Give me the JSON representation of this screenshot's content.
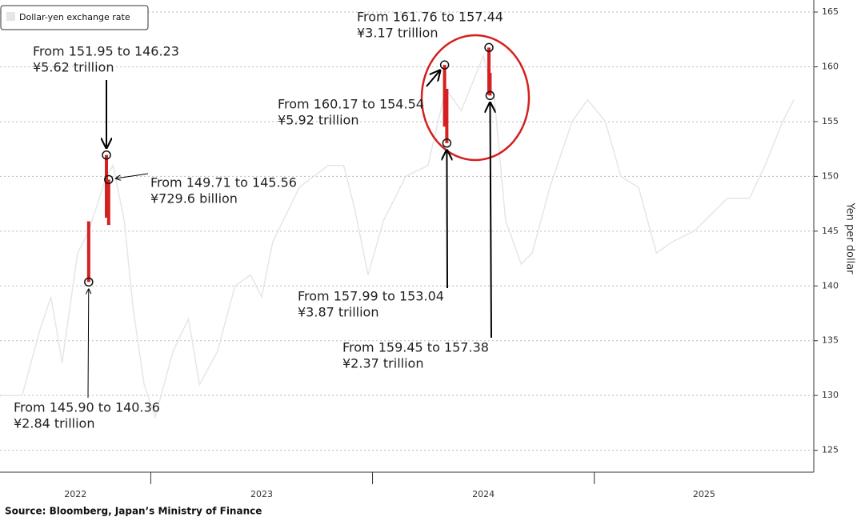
{
  "chart_data": {
    "type": "line",
    "legend": "upper left",
    "y_label": "Yen per dollar",
    "ylim": [
      123,
      166.1
    ],
    "yticks": [
      125,
      130,
      135,
      140,
      145,
      150,
      155,
      160,
      165
    ],
    "grid": true,
    "xlim": [
      2022.32,
      2025.99
    ],
    "xticks": [
      2023,
      2024,
      2025
    ],
    "period_labels": [
      "2022",
      "2023",
      "2024",
      "2025"
    ],
    "series": [
      {
        "name": "Dollar-yen exchange rate",
        "color": "#e6e6e6",
        "x": [
          2022.33,
          2022.42,
          2022.5,
          2022.55,
          2022.6,
          2022.67,
          2022.72,
          2022.8,
          2022.83,
          2022.88,
          2022.92,
          2022.97,
          2023.02,
          2023.1,
          2023.17,
          2023.22,
          2023.3,
          2023.38,
          2023.45,
          2023.5,
          2023.55,
          2023.67,
          2023.8,
          2023.87,
          2023.92,
          2023.98,
          2024.05,
          2024.15,
          2024.25,
          2024.33,
          2024.4,
          2024.5,
          2024.55,
          2024.6,
          2024.67,
          2024.72,
          2024.8,
          2024.9,
          2024.97,
          2025.05,
          2025.12,
          2025.2,
          2025.28,
          2025.35,
          2025.45,
          2025.55,
          2025.6,
          2025.7,
          2025.77,
          2025.85,
          2025.9
        ],
        "values": [
          130,
          130,
          136,
          139,
          133,
          143,
          145,
          150,
          151,
          146,
          138,
          131,
          128,
          134,
          137,
          131,
          134,
          140,
          141,
          139,
          144,
          149,
          151,
          151,
          147,
          141,
          146,
          150,
          151,
          158,
          156,
          161,
          157,
          146,
          142,
          143,
          149,
          155,
          157,
          155,
          150,
          149,
          143,
          144,
          145,
          147,
          148,
          148,
          151,
          155,
          157
        ]
      }
    ],
    "interventions": [
      {
        "x": 2022.72,
        "from": 145.9,
        "to": 140.36,
        "label": "From 145.90 to 140.36",
        "amount": "¥2.84 trillion"
      },
      {
        "x": 2022.8,
        "from": 151.95,
        "to": 146.23,
        "label": "From 151.95 to 146.23",
        "amount": "¥5.62 trillion"
      },
      {
        "x": 2022.81,
        "from": 149.71,
        "to": 145.56,
        "label": "From 149.71 to 145.56",
        "amount": "¥729.6 billion"
      },
      {
        "x": 2024.325,
        "from": 160.17,
        "to": 154.54,
        "label": "From 160.17 to 154.54",
        "amount": "¥5.92 trillion"
      },
      {
        "x": 2024.335,
        "from": 157.99,
        "to": 153.04,
        "label": "From 157.99 to 153.04",
        "amount": "¥3.87 trillion"
      },
      {
        "x": 2024.525,
        "from": 161.76,
        "to": 157.44,
        "label": "From 161.76 to 157.44",
        "amount": "¥3.17 trillion"
      },
      {
        "x": 2024.53,
        "from": 159.45,
        "to": 157.38,
        "label": "From 159.45 to 157.38",
        "amount": "¥2.37 trillion"
      }
    ]
  },
  "source": "Source: Bloomberg, Japan’s Ministry of Finance"
}
